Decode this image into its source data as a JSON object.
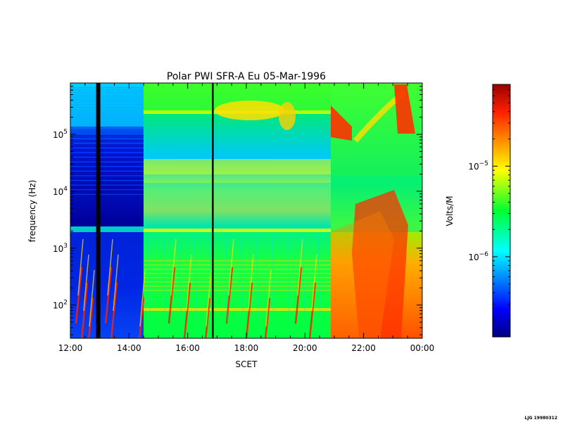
{
  "chart_data": {
    "type": "heatmap",
    "title": "Polar PWI SFR-A Eu  05-Mar-1996",
    "xlabel": "SCET",
    "ylabel": "frequency (Hz)",
    "x_ticks": [
      "12:00",
      "14:00",
      "16:00",
      "18:00",
      "20:00",
      "22:00",
      "00:00"
    ],
    "x_range": [
      "12:00",
      "00:00"
    ],
    "y_scale": "log",
    "y_range": [
      26,
      800000
    ],
    "y_ticks": [
      {
        "base": "10",
        "exp": "2"
      },
      {
        "base": "10",
        "exp": "3"
      },
      {
        "base": "10",
        "exp": "4"
      },
      {
        "base": "10",
        "exp": "5"
      }
    ],
    "colorbar": {
      "label": "Volts/M",
      "scale": "log",
      "range": [
        1.3e-07,
        8e-05
      ],
      "ticks": [
        {
          "base": "10",
          "exp": "−5"
        },
        {
          "base": "10",
          "exp": "−6"
        }
      ]
    },
    "footer_stamp": "LJG 19980312",
    "description_of_features": {
      "data_gap_hours": [
        12.95,
        16.85
      ],
      "instrument_mode_change_hour": 14.45,
      "bursts_hour": [
        20.9,
        23.1
      ]
    }
  }
}
